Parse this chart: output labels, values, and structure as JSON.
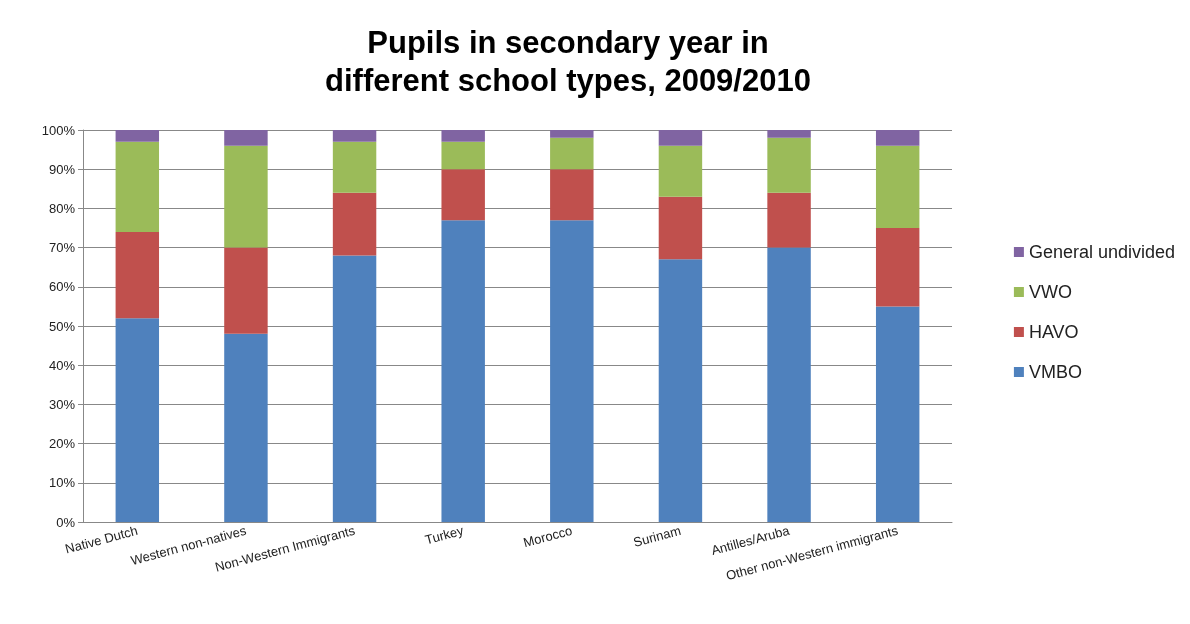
{
  "chart_data": {
    "type": "bar",
    "title": "Pupils in secondary year in\ndifferent school types, 2009/2010",
    "categories": [
      "Native Dutch",
      "Western non-natives",
      "Non-Western Immigrants",
      "Turkey",
      "Morocco",
      "Surinam",
      "Antilles/Aruba",
      "Other non-Western immigrants"
    ],
    "stacked": true,
    "series": [
      {
        "name": "VMBO",
        "color": "#4f81bd",
        "values": [
          52,
          48,
          68,
          77,
          77,
          67,
          70,
          55
        ]
      },
      {
        "name": "HAVO",
        "color": "#c0504d",
        "values": [
          22,
          22,
          16,
          13,
          13,
          16,
          14,
          20
        ]
      },
      {
        "name": "VWO",
        "color": "#9bbb59",
        "values": [
          23,
          26,
          13,
          7,
          8,
          13,
          14,
          21
        ]
      },
      {
        "name": "General undivided",
        "color": "#8064a2",
        "values": [
          3,
          4,
          3,
          3,
          2,
          4,
          2,
          4
        ]
      }
    ],
    "ylim": [
      0,
      100
    ],
    "yticks": [
      {
        "value": 0,
        "label": "0%"
      },
      {
        "value": 10,
        "label": "10%"
      },
      {
        "value": 20,
        "label": "20%"
      },
      {
        "value": 30,
        "label": "30%"
      },
      {
        "value": 40,
        "label": "40%"
      },
      {
        "value": 50,
        "label": "50%"
      },
      {
        "value": 60,
        "label": "60%"
      },
      {
        "value": 70,
        "label": "70%"
      },
      {
        "value": 80,
        "label": "80%"
      },
      {
        "value": 90,
        "label": "90%"
      },
      {
        "value": 100,
        "label": "100%"
      }
    ],
    "grid": "y",
    "legend": "right"
  }
}
